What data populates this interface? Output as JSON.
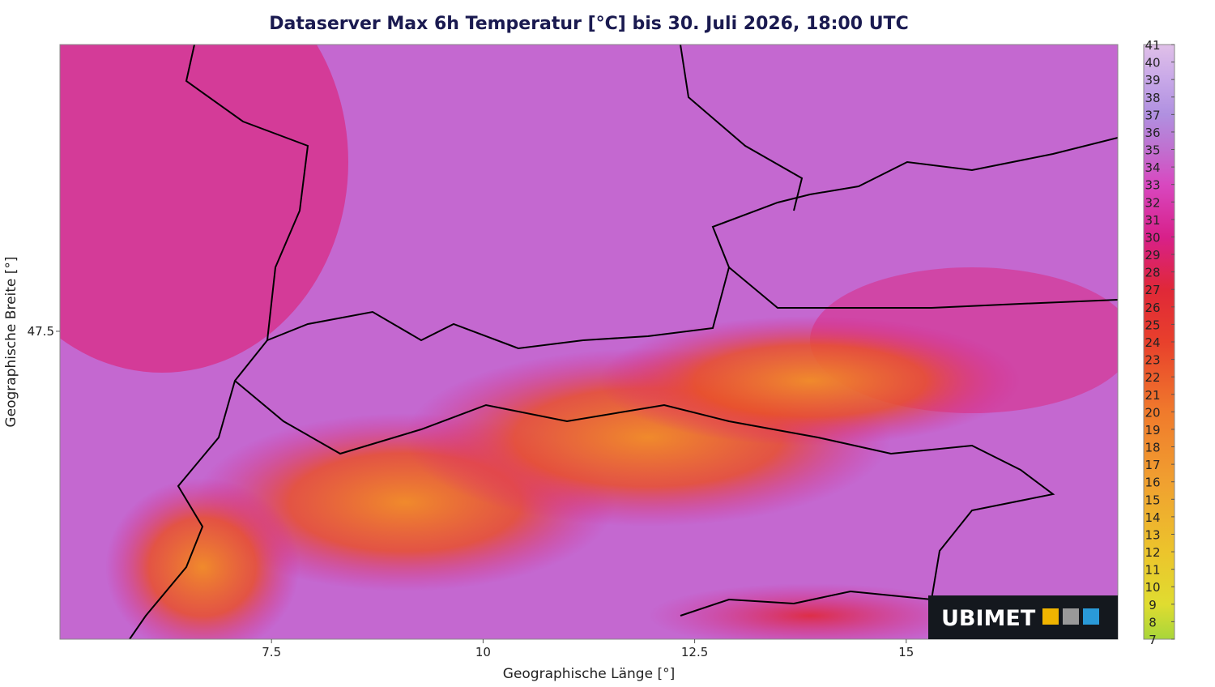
{
  "chart_data": {
    "type": "map",
    "title": "Dataserver Max 6h Temperatur [°C] bis 30. Juli 2026, 18:00 UTC",
    "x_label": "Geographische Länge [°]",
    "y_label": "Geographische Breite [°]",
    "xlim": [
      5.0,
      17.5
    ],
    "xticks": [
      7.5,
      10,
      12.5,
      15
    ],
    "ylim": [
      45.03,
      49.8
    ],
    "yticks": [
      47.5
    ],
    "colorbar": {
      "lim": [
        7,
        41
      ],
      "ticks": [
        7,
        8,
        9,
        10,
        11,
        12,
        13,
        14,
        15,
        16,
        17,
        18,
        19,
        20,
        21,
        22,
        23,
        24,
        25,
        26,
        27,
        28,
        29,
        30,
        31,
        32,
        33,
        34,
        35,
        36,
        37,
        38,
        39,
        40,
        41
      ],
      "stops": [
        {
          "value": 7,
          "color": "#a8d63a"
        },
        {
          "value": 9,
          "color": "#e0dc30"
        },
        {
          "value": 12,
          "color": "#ecc42c"
        },
        {
          "value": 16,
          "color": "#f0a030"
        },
        {
          "value": 20,
          "color": "#f07a2c"
        },
        {
          "value": 24,
          "color": "#e8402c"
        },
        {
          "value": 27,
          "color": "#e02838"
        },
        {
          "value": 30,
          "color": "#d8208a"
        },
        {
          "value": 33,
          "color": "#d848c0"
        },
        {
          "value": 35,
          "color": "#c070d0"
        },
        {
          "value": 37,
          "color": "#b090e0"
        },
        {
          "value": 39,
          "color": "#c8a8e8"
        },
        {
          "value": 41,
          "color": "#e0c0e8"
        }
      ]
    },
    "logo": "UBIMET"
  }
}
